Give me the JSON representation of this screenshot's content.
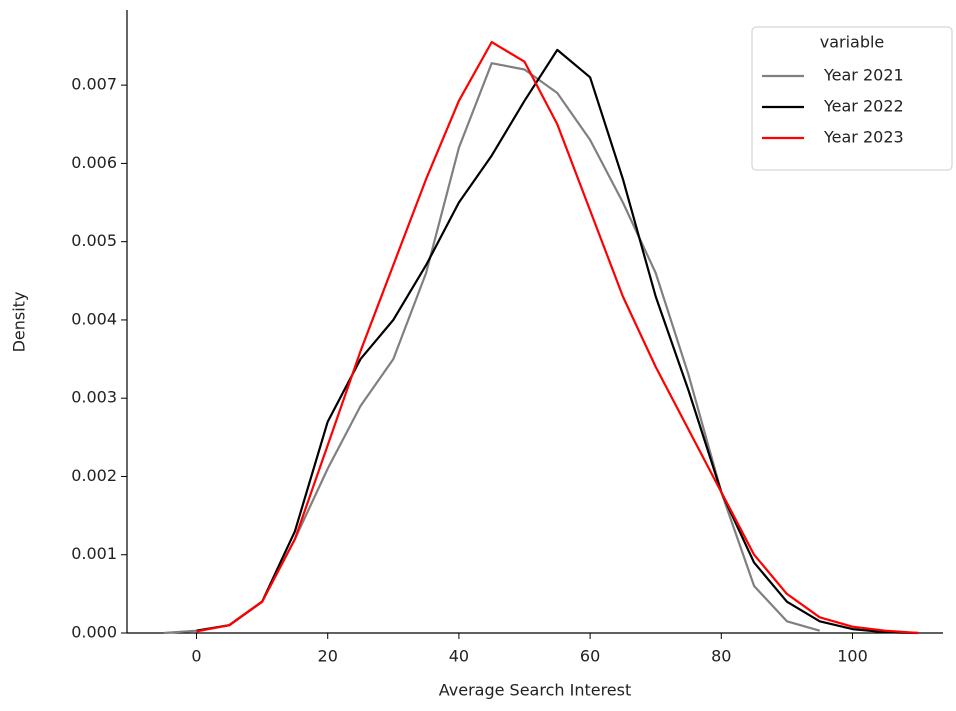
{
  "chart_data": {
    "type": "line",
    "x_label": "Average Search Interest",
    "y_label": "Density",
    "x": [
      -5,
      0,
      5,
      10,
      15,
      20,
      25,
      30,
      35,
      40,
      45,
      50,
      55,
      60,
      65,
      70,
      75,
      80,
      85,
      90,
      95,
      100,
      105,
      110
    ],
    "series": [
      {
        "name": "Year 2021",
        "color": "#808080",
        "values": [
          0,
          3e-05,
          0.0001,
          0.0004,
          0.0012,
          0.0021,
          0.0029,
          0.0035,
          0.0046,
          0.0062,
          0.00728,
          0.0072,
          0.0069,
          0.0063,
          0.0055,
          0.0046,
          0.0033,
          0.0018,
          0.0006,
          0.00015,
          3e-05,
          null,
          null,
          null
        ]
      },
      {
        "name": "Year 2022",
        "color": "#000000",
        "values": [
          null,
          3e-05,
          0.0001,
          0.0004,
          0.0013,
          0.0027,
          0.0035,
          0.004,
          0.0047,
          0.0055,
          0.0061,
          0.0068,
          0.00745,
          0.0071,
          0.0058,
          0.0043,
          0.0031,
          0.0018,
          0.0009,
          0.0004,
          0.00015,
          5e-05,
          1e-05,
          0
        ]
      },
      {
        "name": "Year 2023",
        "color": "#ff0000",
        "values": [
          null,
          2e-05,
          0.0001,
          0.0004,
          0.0012,
          0.0024,
          0.0036,
          0.0047,
          0.0058,
          0.0068,
          0.00755,
          0.0073,
          0.0065,
          0.0054,
          0.0043,
          0.0034,
          0.0026,
          0.0018,
          0.001,
          0.0005,
          0.0002,
          8e-05,
          3e-05,
          0
        ]
      }
    ],
    "legend_title": "variable",
    "legend": "upper right",
    "xlim": [
      -10.6,
      113.8
    ],
    "xticks": [
      0,
      20,
      40,
      60,
      80,
      100
    ],
    "ylim": [
      0,
      0.00796
    ],
    "yticks": [
      {
        "value": 0,
        "label": "0.000"
      },
      {
        "value": 0.001,
        "label": "0.001"
      },
      {
        "value": 0.002,
        "label": "0.002"
      },
      {
        "value": 0.003,
        "label": "0.003"
      },
      {
        "value": 0.004,
        "label": "0.004"
      },
      {
        "value": 0.005,
        "label": "0.005"
      },
      {
        "value": 0.006,
        "label": "0.006"
      },
      {
        "value": 0.007,
        "label": "0.007"
      }
    ]
  }
}
